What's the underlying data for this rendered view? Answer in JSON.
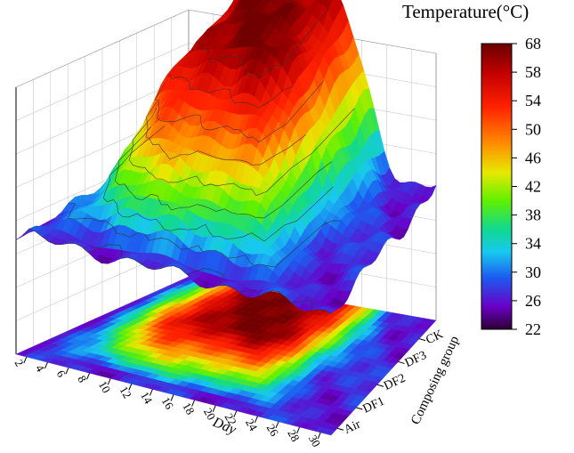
{
  "chart_data": {
    "type": "surface3d",
    "colorbar_title": "Temperature(°C)",
    "colorbar_ticks": [
      "68",
      "58",
      "54",
      "50",
      "46",
      "42",
      "38",
      "34",
      "30",
      "26",
      "22"
    ],
    "xlabel": "Day",
    "ylabel": "Composing group",
    "day_ticks": [
      "2",
      "4",
      "6",
      "8",
      "10",
      "12",
      "14",
      "16",
      "18",
      "20",
      "22",
      "24",
      "26",
      "28",
      "30"
    ],
    "groups": [
      "CK",
      "DF3",
      "DF2",
      "DF1",
      "Air"
    ],
    "zlim": [
      22,
      68
    ],
    "colormap": [
      "#2a0030",
      "#6a00a8",
      "#3b1bd6",
      "#1d6af0",
      "#18c8f0",
      "#10dc4a",
      "#88f000",
      "#e8e800",
      "#ff9a00",
      "#ff3000",
      "#d40000",
      "#7a0000"
    ]
  }
}
